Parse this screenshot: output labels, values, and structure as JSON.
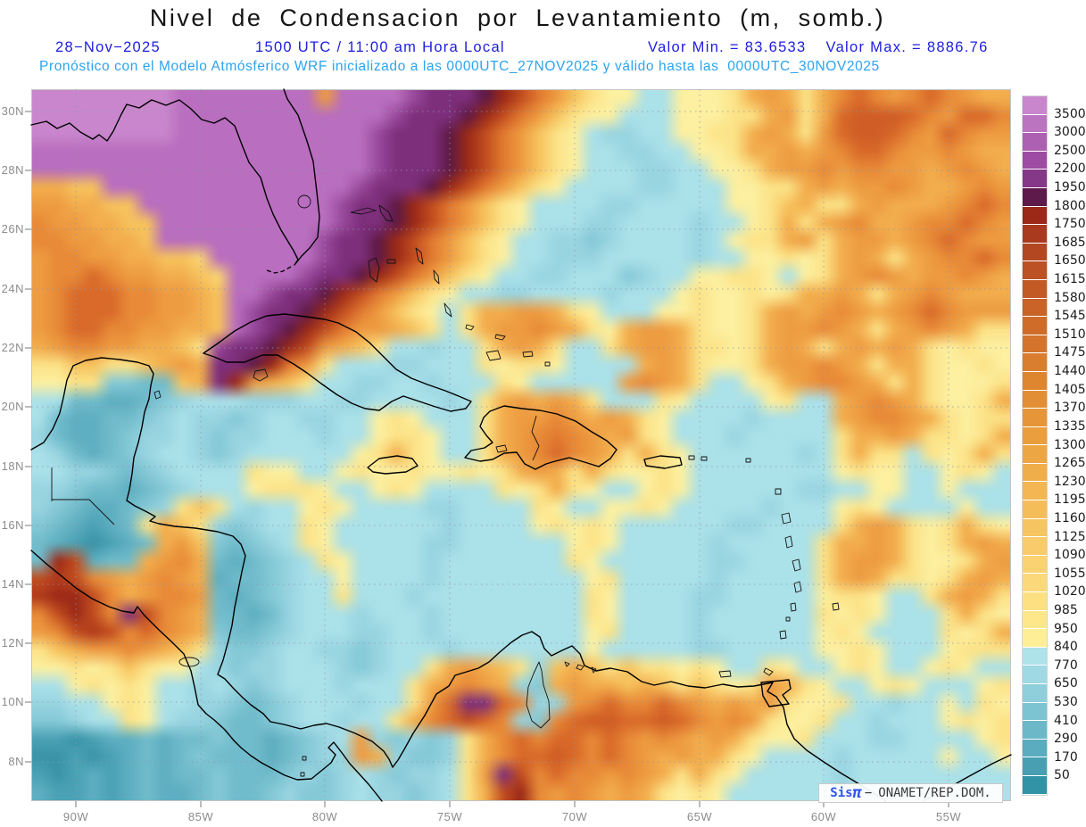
{
  "title": "Nivel de Condensacion por Levantamiento (m, somb.)",
  "header": {
    "date": "28−Nov−2025",
    "time": "1500 UTC / 11:00 am Hora Local",
    "valor_min": "Valor Min. = 83.6533",
    "valor_max": "Valor Max. = 8886.76",
    "forecast": "Pronóstico con el Modelo Atmósferico WRF inicializado a las 0000UTC_27NOV2025 y válido hasta las  0000UTC_30NOV2025"
  },
  "watermark": {
    "brand": "Sis",
    "pi": "π",
    "separator": "−",
    "org": "ONAMET/REP.DOM."
  },
  "axes": {
    "lat_labels": [
      "30N",
      "28N",
      "26N",
      "24N",
      "22N",
      "20N",
      "18N",
      "16N",
      "14N",
      "12N",
      "10N",
      "8N"
    ],
    "lon_labels": [
      "90W",
      "85W",
      "80W",
      "75W",
      "70W",
      "65W",
      "60W",
      "55W"
    ]
  },
  "colorbar": {
    "labels": [
      "3500",
      "3000",
      "2500",
      "2200",
      "1950",
      "1800",
      "1750",
      "1685",
      "1650",
      "1615",
      "1580",
      "1545",
      "1510",
      "1475",
      "1440",
      "1405",
      "1370",
      "1335",
      "1300",
      "1265",
      "1230",
      "1195",
      "1160",
      "1125",
      "1090",
      "1055",
      "1020",
      "985",
      "950",
      "840",
      "770",
      "650",
      "530",
      "410",
      "290",
      "170",
      "50"
    ],
    "colors": [
      "#c986cd",
      "#bb74c0",
      "#ad60b2",
      "#9d4ba3",
      "#853788",
      "#5e1a4a",
      "#9c2818",
      "#a93a1e",
      "#b34722",
      "#bb5124",
      "#c25a26",
      "#c96328",
      "#cf6c2a",
      "#d4742c",
      "#d97d2e",
      "#de8530",
      "#e28e34",
      "#e69638",
      "#ea9e3e",
      "#eda644",
      "#f0ae4a",
      "#f3b652",
      "#f5bd5a",
      "#f7c462",
      "#f9cb6a",
      "#fad272",
      "#fbd97a",
      "#fce082",
      "#fde78a",
      "#feee96",
      "#aee3ea",
      "#9fd9e3",
      "#8ecfdb",
      "#7dc4d2",
      "#6cb8c8",
      "#5aacbe",
      "#489fb2",
      "#3292a6"
    ]
  },
  "map_field": {
    "cols": 55,
    "palette": {
      "a": "#abe1e9",
      "b": "#99d5e1",
      "c": "#85c9d7",
      "d": "#71bccc",
      "e": "#5eafc1",
      "f": "#4ba2b5",
      "g": "#3a94a8",
      "h": "#2a879b",
      "y": "#fdf0a0",
      "z": "#fce388",
      "A": "#fad573",
      "B": "#f7c35e",
      "C": "#f3ae4d",
      "D": "#ee9c42",
      "E": "#e88a38",
      "F": "#e27a30",
      "G": "#d96a2a",
      "H": "#d05d26",
      "I": "#c24e20",
      "J": "#b13a1c",
      "K": "#9c2a18",
      "L": "#5f1a45",
      "M": "#7e2f7c",
      "N": "#9a4a9c",
      "O": "#ab5fad",
      "P": "#b96ebf",
      "Q": "#c986cd"
    },
    "rows": [
      "Q8P8D1P4N1M3L1K1I1F1D1B1z1y2a2y3z1C1D1C1z1C1E1G1E1D1E1G1E1D1C2",
      "Q8P12N1M3L1K1I1F1D1B1z1y2a3y3z2C1D1z1C1G1H3G1E1D1G2E1D1",
      "Q8P11N1M3L1K1I1F1D1B1z1y1a1b2a2y2z2C1D1C1z1D1G1H2G1E1D1G1E1D2",
      "P19N1M3L1K1I1F1D1B1z1y1a2b2a2y2z1C2D1C1D1E1G2E1D2E1D1C2",
      "P19N1M3L1K1I1F1D1B1z1y1a3b2a2y2z1C1D2E1D1E2D2C1D1E1D1C1",
      "C2B2P14N1M3L1K1I1F1D1B1z1y1a4b2a3y2z2C1D1C1D2E1D1C2D1E1D1C1",
      "D2C2B2P11N1M2L1K1I1F1D1B1z1y1a4b2a5y2z1B1C1z2C1D1C3D1E1G1E1D1C1",
      "E1D2C2B2P10N1M2L1K1I1F1D1B1z1y1a3b2a4b1a2y1z1C1z1C1D1E1C2D1E2G1E1D1C1",
      "E2D2C2B1P9N1M2L1K1I1F1D1B1z1y1a2b2c1b1a4b1a1y1z2C1D1z1C1D2C1D1E1G1E1D1",
      "D1E2D2C2B2A1P6N1M2L1K1I1F1D1B1z1y1a2b3a5b1a2y2z1y1z1C1D1C1z1C1D1E2G1E1",
      "D1E2G1E1D2C2B1A1P4N1M2L1K1I1F1D1B1z1y1a2b2a3c1b1a2y2z2y1a1y1z1C1D1E1D1C1D2E1D1C1",
      "D1E1G3E2D2C1B1P2N1M2L1K1I1F1D1B1z1y1a2b2a4b1a3y1z1y2z1y1z1C2D1C1z1C1D1E1D1C1",
      "D1E1G3E2D2C1B1P1N1M2L1K1I1F1D1B1z1y1a1z1C2D2C1z1y1a3y2z1y2z1C1D1C1D1E1D1C1D1E1G1E1D1",
      "D1E1G2E2D2C2B1P1N1M1L1K1I1F1D2C1B1z1a1z1C1D2E1D1C1z1y1C1D2C1z1y2z1C1D2E1D1C1z1C1D1E1D1C1z2",
      "C1D1E2D2C2B1z1N1M2L1K1I1D1C1B1z1a2b1a2z1C1D1C1z1a2z1C1D2C1z2y1z1C1D1C1z1C1D1C1D1C1z1y1z1y2",
      "z2B2z2B1C1D1C1M2L1K1F1D1z1a3b2a3z1y1z2y1a4C1D1C1z1y2z1C1D2E1D1C1z1C2z1y2z1y1",
      "y2z2c2d2B1C1M1K1D1C1B1z1a2b2a2b1a3z1y1a5D1E1D1C1z1a2y1z1C1D1E2D1C1z1C1z1y3z1",
      "a2d2e2d1c1b1a3b3a2b2a4b1a1z1C1D1C1D1C1z1a3z1y1a4y1z1a2C1D1E1D1C1z1y2z1C1",
      "a1d1e2d2c1b1a1b2c1b1a2b2a2y1z1y1a3z1C1D2E1D1C1D1C1z1y1a4b1a4C1D1E2D1C1z1y1z2",
      "b1d1e2d1c1b2a1b1c1b2a3b1a2y1z2y1a2z1C1D1E1F1E1D1C1D1z1y1a3b1a5z1C2D1C1z2y1z1C1",
      "a1b1d1e1d1c1b1a2b1c1b1a6y1z1C1z1y1a2z1C1D1E1G1E1D1C1z1C1z1y1a6b1a1z1C1z2a1z1y1z1C1z1",
      "a2b2c1d1c1b1a4z1y2a2y1z1y2z1y2z1y1z1C1D1C1z1C1z1y2z1y1a8y1z1y2a2y1z1y1a1",
      "b2c1d2e1d1c1b1a3y1z2z1y1a2y1z1y1a4z1y1z1C1z1y1a2y1z1y1a6b2a2y2a2y1a3",
      "b1c1d1e2d1c1b1z1B1z1a1b1a2y1z1y1a4b2a4z1y1a2y2z1y1a5b1a3y1z1y1a4y1a2",
      "c1d1e1f1e1d1z1C1B1z1b1c1b1a2z1y1a6b1a4y1z1y1z1y1a6b2a4z1C1D1C1z1y1z1C1z1y1",
      "d1e1f1g1f1e1d1C1D1B1c1d1c1b1a1z1y1a5b2a6y1z1y1a5b1a5z1C2D1C1z1y1z1C1D1C1",
      "d1K1I1e1d2C1D1E1C1d1e1d1c1b1a1z1y1a4b1a7z1y1a6b2a4z1C1D2C1z1y2z1C1D1",
      "I1J1I1E1D1C1D1E1D1C1e1d2c1b1a2y1a4b1a8y1z1a5b1a5z1C1D1C1z2y1z1C1D1C1",
      "J1K2I1E1C1D1E2D1d1e1d1c1b1a2z1a3b1a9z1y1a4b2a5y1z2y1a2z1C1D1C1z1",
      "E1I1K1I1E1M1I1E1D1C1d2e1d1b1a3b1a3b1a8z1y1a4b1a6z1y1z1y1a3z1C1z1y1",
      "D1E1I1J1I1E1G1E1D1C1c1d2c1b1a3b2a2b1a8y1z1a4b1a6y1z1y1a4z1y1z1C1",
      "z1B1C1D2E1D1C1B1z1b1c2b1a2b2c1b1a3b1a7y1a5b2a5y2z1y1a3y1z2",
      "y2z1y1z1B1z1y2a1b1c1b2a3b1c1b1a2z1C1D1C1B1z1b1B1C1B1z1B1z2y1z1y1a2z1y1a2y1z1y1a2y1z1y1a2",
      "a2y1z1y1z1y1a2b1a1b1c1b1a3b1a3z1C1D1E1D1C1b1c1C1D1C2B1C1B1z1B1z1y1z1D1C1z1y1a2y1z1y1a3y1z1",
      "b2a2y1z1y1a2b2c1d1c1b1a3b1a2z1D1G1M2G1E1b2D1E1G1E2G1E1D1C1D1C1D1z1y2z1a2b1a2y1a1z1y1",
      "c2b1a2z1y1a1b2c1d2c1b1a2b1a2z1C1E1G1I1G1E1b1c1E1G1H2G2H1G1E1D1E1D1z1y2z1a2b1a3y1z1y1z1",
      "f2g1f1e2d1e1d2c1d2e1d1c1b1a1D1b1c1b1c1b1z1C1E1G1E1G2E1G1E1D1E1D1C1D1C1z1y2z1a3b2a4y1z1",
      "g2f1g1f1e1d1e1d1c1d3e1d1c1b2D1C1b1c2b1z1C1E1G2H1G1E1G1E1D1C1D1C2z1y1a4b1a5y1a2y1",
      "f1g1f1e1f1e1d1e1d2c1d3c1b1c1b1a1b1c1b2a1z1D1M1I1E1G1E2D1E1D1C1z1C1z1y1a5b1a9",
      "e1f2e1f1e1d1e2d1c1d2c1b1c2b1a1b2c1b1a1z1C1I1K1E1D1E1D1C1D1C1z1y1z1y1a6b1a9"
    ]
  },
  "colors": {
    "title_text": "#141414",
    "subtitle_text": "#1d1de0",
    "forecast_text": "#2ba4ee",
    "axis_text": "#8c8c8c",
    "coastline": "#000000"
  }
}
